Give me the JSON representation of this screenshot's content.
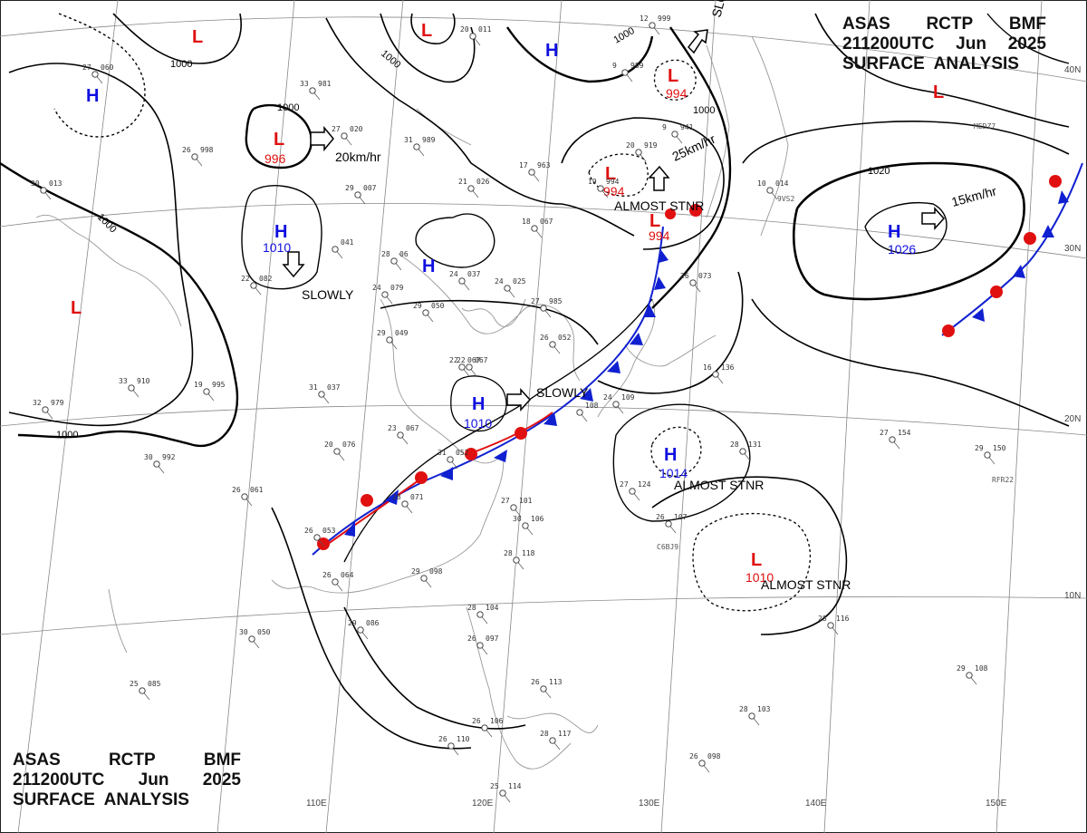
{
  "header": {
    "line1": [
      "ASAS",
      "RCTP",
      "BMF"
    ],
    "line2": [
      "211200UTC",
      "Jun",
      "2025"
    ],
    "line3": "SURFACE  ANALYSIS"
  },
  "grid_labels": {
    "longitudes": [
      "110E",
      "120E",
      "130E",
      "140E",
      "150E"
    ],
    "latitudes": [
      "40N",
      "30N",
      "20N",
      "10N"
    ]
  },
  "colors": {
    "high": "#1010e0",
    "low": "#e01010",
    "isobar": "#000000",
    "cold_front": "#1020d0",
    "warm_front": "#e01010"
  },
  "isobar_labels": [
    "1000",
    "1000",
    "1000",
    "1000",
    "1000",
    "1020",
    "1000",
    "1000"
  ],
  "pressure_centers": [
    {
      "type": "H",
      "value": ""
    },
    {
      "type": "L",
      "value": ""
    },
    {
      "type": "L",
      "value": "996"
    },
    {
      "type": "H",
      "value": "1010"
    },
    {
      "type": "H",
      "value": ""
    },
    {
      "type": "L",
      "value": ""
    },
    {
      "type": "L",
      "value": ""
    },
    {
      "type": "H",
      "value": ""
    },
    {
      "type": "L",
      "value": "994"
    },
    {
      "type": "L",
      "value": "994"
    },
    {
      "type": "L",
      "value": "994"
    },
    {
      "type": "H",
      "value": "1010"
    },
    {
      "type": "H",
      "value": "1014"
    },
    {
      "type": "L",
      "value": "1010"
    },
    {
      "type": "H",
      "value": "1026"
    },
    {
      "type": "L",
      "value": ""
    }
  ],
  "motion_labels": [
    "20km/hr",
    "SLOWLY",
    "SLOWLY",
    "25km/hr",
    "ALMOST STNR",
    "15km/hr",
    "SLOWLY",
    "ALMOST STNR",
    "ALMOST STNR"
  ],
  "stations": [
    {
      "t": "27",
      "p": "060"
    },
    {
      "t": "33",
      "p": "981"
    },
    {
      "t": "27",
      "p": "020"
    },
    {
      "t": "26",
      "p": "998"
    },
    {
      "t": "31",
      "p": "989"
    },
    {
      "t": "21",
      "p": "026"
    },
    {
      "t": "17",
      "p": "963"
    },
    {
      "t": "29",
      "p": "007"
    },
    {
      "t": "30",
      "p": "013"
    },
    {
      "t": "22",
      "p": "082"
    },
    {
      "t": "28",
      "p": "06"
    },
    {
      "t": "24",
      "p": "037"
    },
    {
      "t": "24",
      "p": "025"
    },
    {
      "t": "24",
      "p": "079"
    },
    {
      "t": "29",
      "p": "050"
    },
    {
      "t": "27",
      "p": "985"
    },
    {
      "t": "29",
      "p": "049"
    },
    {
      "t": "22",
      "p": "067"
    },
    {
      "t": "31",
      "p": "037"
    },
    {
      "t": "19",
      "p": "995"
    },
    {
      "t": "33",
      "p": "910"
    },
    {
      "t": "32",
      "p": "979"
    },
    {
      "t": "30",
      "p": "992"
    },
    {
      "t": "20",
      "p": "076"
    },
    {
      "t": "23",
      "p": "067"
    },
    {
      "t": "31",
      "p": "052"
    },
    {
      "t": "26",
      "p": "061"
    },
    {
      "t": "28",
      "p": "071"
    },
    {
      "t": "27",
      "p": "101"
    },
    {
      "t": "30",
      "p": "106"
    },
    {
      "t": "28",
      "p": "118"
    },
    {
      "t": "29",
      "p": "098"
    },
    {
      "t": "26",
      "p": "053"
    },
    {
      "t": "26",
      "p": "064"
    },
    {
      "t": "29",
      "p": "086"
    },
    {
      "t": "30",
      "p": "050"
    },
    {
      "t": "28",
      "p": "104"
    },
    {
      "t": "26",
      "p": "097"
    },
    {
      "t": "25",
      "p": "085"
    },
    {
      "t": "26",
      "p": "113"
    },
    {
      "t": "26",
      "p": "106"
    },
    {
      "t": "26",
      "p": "110"
    },
    {
      "t": "28",
      "p": "117"
    },
    {
      "t": "25",
      "p": "114"
    },
    {
      "t": "26",
      "p": "098"
    },
    {
      "t": "28",
      "p": "103"
    },
    {
      "t": "28",
      "p": "116"
    },
    {
      "t": "29",
      "p": "108"
    },
    {
      "t": "27",
      "p": "154"
    },
    {
      "t": "28",
      "p": "131"
    },
    {
      "t": "26",
      "p": "107"
    },
    {
      "t": "27",
      "p": "124"
    },
    {
      "t": "16",
      "p": "136"
    },
    {
      "t": "24",
      "p": "109"
    },
    {
      "t": "26",
      "p": "073"
    },
    {
      "t": "18",
      "p": "067"
    },
    {
      "t": "9",
      "p": "941"
    },
    {
      "t": "20",
      "p": "919"
    },
    {
      "t": "19",
      "p": "994"
    },
    {
      "t": "9",
      "p": "989"
    },
    {
      "t": "10",
      "p": "014"
    },
    {
      "t": "29",
      "p": "150"
    },
    {
      "t": "20",
      "p": "011"
    },
    {
      "t": "12",
      "p": "999"
    },
    {
      "t": "",
      "p": "041"
    },
    {
      "t": "22",
      "p": "067"
    },
    {
      "t": "26",
      "p": "052"
    },
    {
      "t": "",
      "p": "108"
    }
  ],
  "ship_ids": [
    "MEDZ7",
    "9VS2",
    "RFR22",
    "C6BJ9"
  ]
}
